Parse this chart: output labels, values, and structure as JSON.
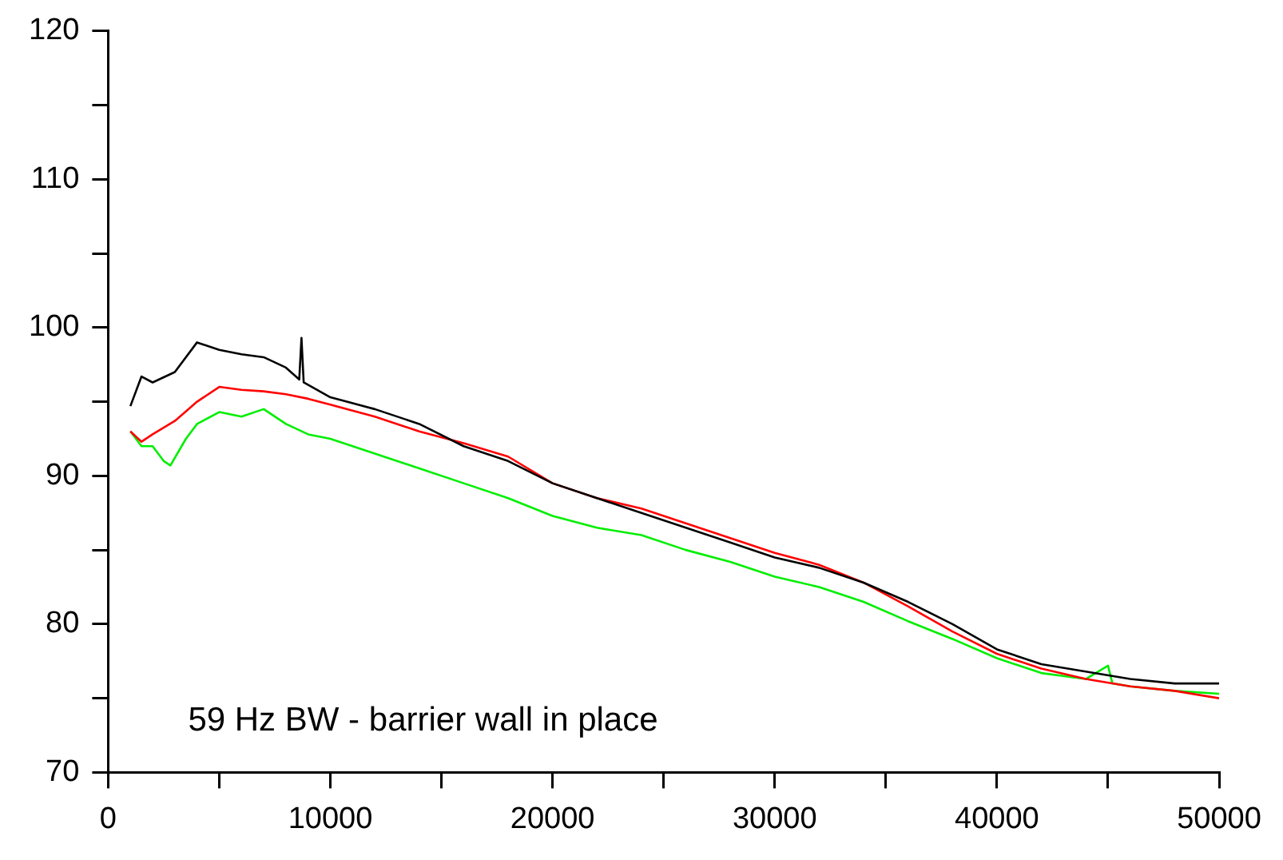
{
  "chart_data": {
    "type": "line",
    "annotations": [
      "59 Hz BW - barrier wall in place"
    ],
    "xlim": [
      0,
      50000
    ],
    "xticks": [
      0,
      {
        "value": 5000,
        "label": null
      },
      10000,
      {
        "value": 15000,
        "label": null
      },
      20000,
      {
        "value": 25000,
        "label": null
      },
      30000,
      {
        "value": 35000,
        "label": null
      },
      40000,
      {
        "value": 45000,
        "label": null
      },
      50000
    ],
    "ylim": [
      70,
      120
    ],
    "yticks": [
      70,
      {
        "value": 75,
        "label": null
      },
      80,
      {
        "value": 85,
        "label": null
      },
      90,
      {
        "value": 95,
        "label": null
      },
      100,
      {
        "value": 105,
        "label": null
      },
      110,
      {
        "value": 115,
        "label": null
      },
      120
    ],
    "grid": false,
    "legend": false,
    "marker": "none",
    "line_style": "solid",
    "series": [
      {
        "color": "#000000",
        "x": [
          1000,
          1500,
          2000,
          3000,
          4000,
          5000,
          6000,
          7000,
          8000,
          8600,
          8700,
          8800,
          10000,
          12000,
          14000,
          16000,
          18000,
          20000,
          22000,
          24000,
          26000,
          28000,
          30000,
          32000,
          34000,
          36000,
          38000,
          40000,
          42000,
          44000,
          46000,
          48000,
          50000
        ],
        "values": [
          94.7,
          96.7,
          96.3,
          97,
          99,
          98.5,
          98.2,
          98,
          97.3,
          96.5,
          99.3,
          96.3,
          95.3,
          94.5,
          93.5,
          92,
          91,
          89.5,
          88.5,
          87.5,
          86.5,
          85.5,
          84.5,
          83.8,
          82.8,
          81.5,
          80,
          78.3,
          77.3,
          76.8,
          76.3,
          76,
          76
        ]
      },
      {
        "color": "#ff0000",
        "x": [
          1000,
          1500,
          2000,
          3000,
          4000,
          5000,
          6000,
          7000,
          8000,
          9000,
          10000,
          12000,
          14000,
          16000,
          18000,
          20000,
          22000,
          24000,
          26000,
          28000,
          30000,
          32000,
          34000,
          36000,
          38000,
          40000,
          42000,
          44000,
          46000,
          48000,
          50000
        ],
        "values": [
          93,
          92.3,
          92.8,
          93.7,
          95,
          96,
          95.8,
          95.7,
          95.5,
          95.2,
          94.8,
          94,
          93,
          92.2,
          91.3,
          89.5,
          88.5,
          87.8,
          86.8,
          85.8,
          84.8,
          84,
          82.8,
          81.2,
          79.5,
          78,
          77,
          76.3,
          75.8,
          75.5,
          75
        ]
      },
      {
        "color": "#00ee00",
        "x": [
          1000,
          1500,
          2000,
          2500,
          2800,
          3500,
          4000,
          5000,
          6000,
          7000,
          8000,
          9000,
          10000,
          12000,
          14000,
          16000,
          18000,
          20000,
          22000,
          24000,
          26000,
          28000,
          30000,
          32000,
          34000,
          36000,
          38000,
          40000,
          42000,
          44000,
          45000,
          45200,
          46000,
          48000,
          50000
        ],
        "values": [
          93,
          92,
          92,
          91,
          90.7,
          92.5,
          93.5,
          94.3,
          94,
          94.5,
          93.5,
          92.8,
          92.5,
          91.5,
          90.5,
          89.5,
          88.5,
          87.3,
          86.5,
          86,
          85,
          84.2,
          83.2,
          82.5,
          81.5,
          80.2,
          79,
          77.7,
          76.7,
          76.3,
          77.2,
          76,
          75.8,
          75.5,
          75.3
        ]
      }
    ]
  }
}
